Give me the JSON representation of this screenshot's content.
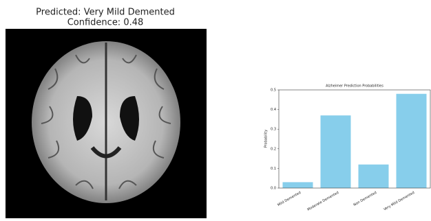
{
  "image_panel": {
    "title_lines": [
      "Predicted: Very Mild Demented",
      "Confidence: 0.48"
    ]
  },
  "chart_data": {
    "type": "bar",
    "title": "Alzheimer Prediction Probabilities",
    "ylabel": "Probability",
    "categories": [
      "Mild Demented",
      "Moderate Demented",
      "Non Demented",
      "Very Mild Demented"
    ],
    "values": [
      0.03,
      0.37,
      0.12,
      0.48
    ],
    "color": "#87ceeb",
    "ylim": [
      0,
      0.5
    ],
    "yticks": [
      {
        "value": 0,
        "label": "0.0"
      },
      0.1,
      0.2,
      0.3,
      0.4,
      0.5
    ],
    "grid": false
  }
}
